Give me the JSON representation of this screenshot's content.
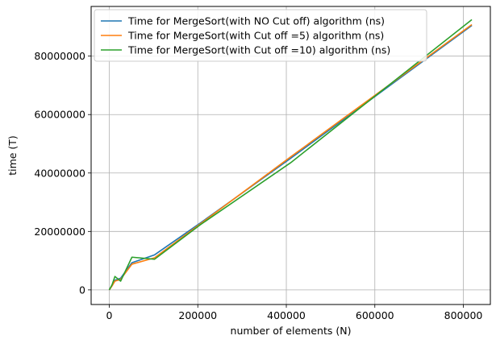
{
  "chart_data": {
    "type": "line",
    "xlabel": "number of elements (N)",
    "ylabel": "time (T)",
    "xlim": [
      -41000,
      861000
    ],
    "ylim": [
      -5000000,
      97000000
    ],
    "xticks": [
      0,
      200000,
      400000,
      600000,
      800000
    ],
    "yticks": [
      0,
      20000000,
      40000000,
      60000000,
      80000000
    ],
    "xtick_labels": [
      "0",
      "200000",
      "400000",
      "600000",
      "800000"
    ],
    "ytick_labels": [
      "0",
      "20000000",
      "40000000",
      "60000000",
      "80000000"
    ],
    "grid": true,
    "legend_position": "upper-left",
    "series": [
      {
        "name": "Time for MergeSort(with NO Cut off) algorithm (ns)",
        "color": "#1f77b4",
        "x": [
          0,
          6400,
          12800,
          25600,
          51200,
          102400,
          204800,
          409600,
          819200
        ],
        "y": [
          0,
          1500000,
          3300000,
          4000000,
          9300000,
          12000000,
          22800000,
          45000000,
          90500000
        ]
      },
      {
        "name": "Time for MergeSort(with Cut off =5) algorithm (ns)",
        "color": "#ff7f0e",
        "x": [
          0,
          6400,
          12800,
          25600,
          51200,
          102400,
          204800,
          409600,
          819200
        ],
        "y": [
          0,
          1400000,
          3000000,
          3600000,
          8800000,
          11000000,
          22500000,
          45500000,
          90800000
        ]
      },
      {
        "name": "Time for MergeSort(with Cut off =10) algorithm (ns)",
        "color": "#2ca02c",
        "x": [
          0,
          6400,
          12800,
          25600,
          51200,
          102400,
          204800,
          409600,
          819200
        ],
        "y": [
          0,
          1800000,
          4600000,
          3000000,
          11200000,
          10500000,
          22200000,
          43500000,
          92500000
        ]
      }
    ]
  }
}
